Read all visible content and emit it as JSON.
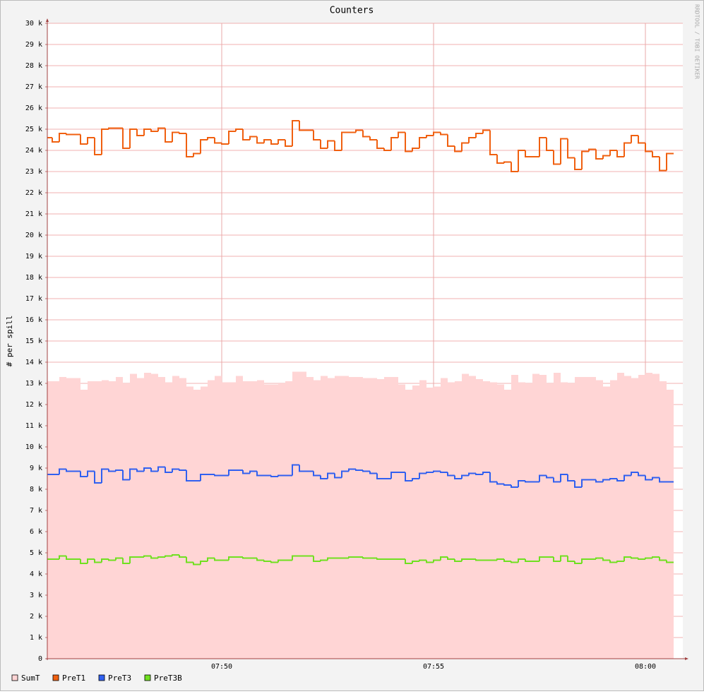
{
  "chart_data": {
    "type": "line",
    "title": "Counters",
    "y_label": "# per spill",
    "watermark": "RRDTOOL / TOBI OETIKER",
    "categories": [
      null,
      null,
      null,
      null,
      null,
      null,
      null,
      null,
      null,
      null,
      null,
      null,
      null,
      null,
      null,
      null,
      null,
      null,
      null,
      null,
      null,
      null,
      null,
      null,
      null,
      "07:50",
      null,
      null,
      null,
      null,
      null,
      null,
      null,
      null,
      null,
      null,
      null,
      null,
      null,
      null,
      null,
      null,
      null,
      null,
      null,
      null,
      null,
      null,
      null,
      null,
      null,
      null,
      null,
      null,
      null,
      "07:55",
      null,
      null,
      null,
      null,
      null,
      null,
      null,
      null,
      null,
      null,
      null,
      null,
      null,
      null,
      null,
      null,
      null,
      null,
      null,
      null,
      null,
      null,
      null,
      null,
      null,
      null,
      null,
      null,
      null,
      "08:00",
      null,
      null,
      null
    ],
    "ylim": [
      0,
      30000
    ],
    "yticks": [
      0,
      {
        "value": 1000,
        "label": "1 k"
      },
      {
        "value": 2000,
        "label": "2 k"
      },
      {
        "value": 3000,
        "label": "3 k"
      },
      {
        "value": 4000,
        "label": "4 k"
      },
      {
        "value": 5000,
        "label": "5 k"
      },
      {
        "value": 6000,
        "label": "6 k"
      },
      {
        "value": 7000,
        "label": "7 k"
      },
      {
        "value": 8000,
        "label": "8 k"
      },
      {
        "value": 9000,
        "label": "9 k"
      },
      {
        "value": 10000,
        "label": "10 k"
      },
      {
        "value": 11000,
        "label": "11 k"
      },
      {
        "value": 12000,
        "label": "12 k"
      },
      {
        "value": 13000,
        "label": "13 k"
      },
      {
        "value": 14000,
        "label": "14 k"
      },
      {
        "value": 15000,
        "label": "15 k"
      },
      {
        "value": 16000,
        "label": "16 k"
      },
      {
        "value": 17000,
        "label": "17 k"
      },
      {
        "value": 18000,
        "label": "18 k"
      },
      {
        "value": 19000,
        "label": "19 k"
      },
      {
        "value": 20000,
        "label": "20 k"
      },
      {
        "value": 21000,
        "label": "21 k"
      },
      {
        "value": 22000,
        "label": "22 k"
      },
      {
        "value": 23000,
        "label": "23 k"
      },
      {
        "value": 24000,
        "label": "24 k"
      },
      {
        "value": 25000,
        "label": "25 k"
      },
      {
        "value": 26000,
        "label": "26 k"
      },
      {
        "value": 27000,
        "label": "27 k"
      },
      {
        "value": 28000,
        "label": "28 k"
      },
      {
        "value": 29000,
        "label": "29 k"
      },
      {
        "value": 30000,
        "label": "30 k"
      }
    ],
    "grid": true,
    "series": [
      {
        "name": "SumT",
        "color": "#ffd5d5",
        "style": "area",
        "values": [
          13100,
          13100,
          13300,
          13250,
          13250,
          12700,
          13100,
          13100,
          13150,
          13100,
          13300,
          13000,
          13450,
          13250,
          13500,
          13450,
          13300,
          13050,
          13350,
          13250,
          12850,
          12700,
          12850,
          13150,
          13350,
          13050,
          13050,
          13350,
          13100,
          13100,
          13150,
          12950,
          12950,
          13000,
          13100,
          13550,
          13550,
          13300,
          13150,
          13350,
          13250,
          13350,
          13350,
          13300,
          13300,
          13250,
          13250,
          13200,
          13300,
          13300,
          12950,
          12700,
          12900,
          13150,
          12800,
          12850,
          13250,
          13050,
          13100,
          13450,
          13350,
          13200,
          13100,
          13050,
          12950,
          12700,
          13400,
          13050,
          13000,
          13450,
          13400,
          13000,
          13500,
          13050,
          13000,
          13300,
          13300,
          13300,
          13150,
          12850,
          13150,
          13500,
          13350,
          13250,
          13400,
          13500,
          13450,
          13100,
          12700
        ]
      },
      {
        "name": "PreT1",
        "color": "#f06010",
        "style": "line",
        "values": [
          24600,
          24400,
          24800,
          24750,
          24750,
          24300,
          24600,
          23800,
          25000,
          25050,
          25050,
          24100,
          25000,
          24700,
          25000,
          24900,
          25050,
          24400,
          24850,
          24800,
          23700,
          23850,
          24500,
          24600,
          24350,
          24300,
          24900,
          25000,
          24500,
          24650,
          24350,
          24500,
          24300,
          24500,
          24200,
          25400,
          24950,
          24950,
          24500,
          24100,
          24450,
          24000,
          24850,
          24850,
          24950,
          24650,
          24500,
          24100,
          24000,
          24600,
          24850,
          23950,
          24100,
          24600,
          24700,
          24850,
          24750,
          24200,
          23950,
          24350,
          24600,
          24800,
          24950,
          23800,
          23400,
          23450,
          23000,
          24000,
          23700,
          23700,
          24600,
          24000,
          23350,
          24550,
          23650,
          23100,
          23950,
          24050,
          23600,
          23750,
          24000,
          23700,
          24350,
          24700,
          24350,
          23950,
          23700,
          23050,
          23850
        ]
      },
      {
        "name": "PreT3",
        "color": "#3060f0",
        "style": "line",
        "values": [
          8700,
          8700,
          8950,
          8850,
          8850,
          8600,
          8850,
          8300,
          8950,
          8850,
          8900,
          8450,
          8950,
          8850,
          9000,
          8850,
          9050,
          8800,
          8950,
          8900,
          8400,
          8400,
          8700,
          8700,
          8650,
          8650,
          8900,
          8900,
          8750,
          8850,
          8650,
          8650,
          8600,
          8650,
          8650,
          9150,
          8850,
          8850,
          8650,
          8500,
          8750,
          8550,
          8850,
          8950,
          8900,
          8850,
          8750,
          8500,
          8500,
          8800,
          8800,
          8400,
          8500,
          8750,
          8800,
          8850,
          8800,
          8650,
          8500,
          8650,
          8750,
          8700,
          8800,
          8350,
          8250,
          8200,
          8100,
          8400,
          8350,
          8350,
          8650,
          8550,
          8350,
          8700,
          8400,
          8100,
          8450,
          8450,
          8350,
          8450,
          8500,
          8400,
          8650,
          8800,
          8650,
          8450,
          8550,
          8350,
          8350
        ]
      },
      {
        "name": "PreT3B",
        "color": "#70e020",
        "style": "line",
        "values": [
          4700,
          4700,
          4850,
          4700,
          4700,
          4500,
          4700,
          4550,
          4700,
          4650,
          4750,
          4500,
          4800,
          4800,
          4850,
          4750,
          4800,
          4850,
          4900,
          4800,
          4550,
          4450,
          4600,
          4750,
          4650,
          4650,
          4800,
          4800,
          4750,
          4750,
          4650,
          4600,
          4550,
          4650,
          4650,
          4850,
          4850,
          4850,
          4600,
          4650,
          4750,
          4750,
          4750,
          4800,
          4800,
          4750,
          4750,
          4700,
          4700,
          4700,
          4700,
          4500,
          4600,
          4650,
          4550,
          4650,
          4800,
          4700,
          4600,
          4700,
          4700,
          4650,
          4650,
          4650,
          4700,
          4600,
          4550,
          4700,
          4600,
          4600,
          4800,
          4800,
          4600,
          4850,
          4600,
          4500,
          4700,
          4700,
          4750,
          4650,
          4550,
          4600,
          4800,
          4750,
          4700,
          4750,
          4800,
          4650,
          4550
        ]
      }
    ]
  }
}
